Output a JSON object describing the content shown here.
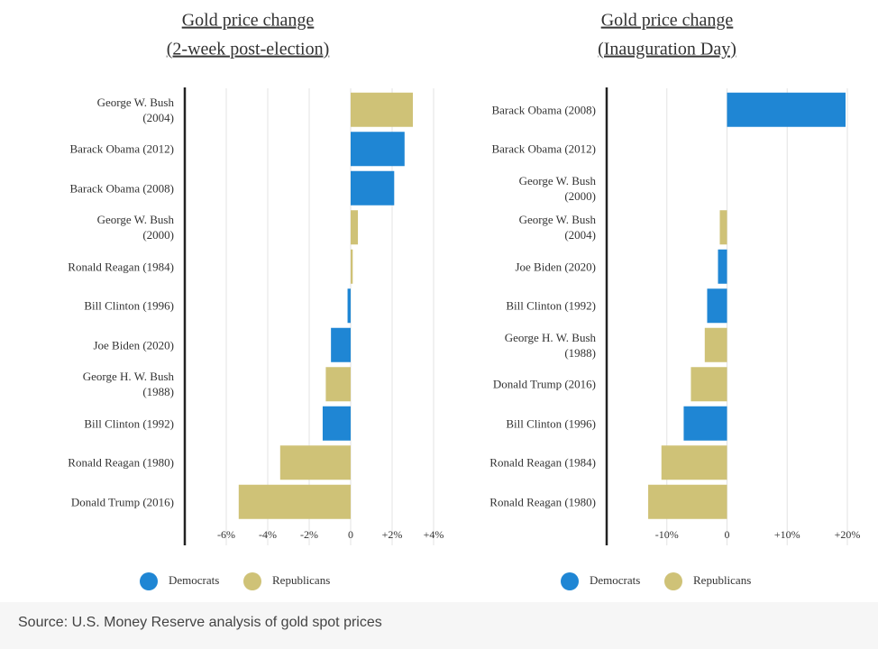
{
  "chart_data": [
    {
      "type": "barh",
      "title": "Gold price change",
      "subtitle": "(2-week post-election)",
      "categories": [
        "George W. Bush\n(2004)",
        "Barack Obama (2012)",
        "Barack Obama (2008)",
        "George W. Bush\n(2000)",
        "Ronald Reagan (1984)",
        "Bill Clinton (1996)",
        "Joe Biden (2020)",
        "George H. W. Bush\n(1988)",
        "Bill Clinton (1992)",
        "Ronald Reagan (1980)",
        "Donald Trump (2016)"
      ],
      "values": [
        3.0,
        2.6,
        2.1,
        0.35,
        0.1,
        -0.15,
        -0.95,
        -1.2,
        -1.35,
        -3.4,
        -5.4
      ],
      "colors": [
        "#cfc277",
        "#1f86d4",
        "#1f86d4",
        "#cfc277",
        "#cfc277",
        "#1f86d4",
        "#1f86d4",
        "#cfc277",
        "#1f86d4",
        "#cfc277",
        "#cfc277"
      ],
      "legend": [
        {
          "name": "Democrats",
          "color": "#1f86d4"
        },
        {
          "name": "Republicans",
          "color": "#cfc277"
        }
      ],
      "xlim": [
        -8,
        4
      ],
      "xticks": [
        {
          "value": -6,
          "label": "-6%"
        },
        {
          "value": -4,
          "label": "-4%"
        },
        {
          "value": -2,
          "label": "-2%"
        },
        0,
        {
          "value": 2,
          "label": "+2%"
        },
        {
          "value": 4,
          "label": "+4%"
        }
      ],
      "grid": true
    },
    {
      "type": "barh",
      "title": "Gold price change",
      "subtitle": "(Inauguration Day)",
      "categories": [
        "Barack Obama (2008)",
        "Barack Obama (2012)",
        "George W. Bush\n(2000)",
        "George W. Bush\n(2004)",
        "Joe Biden (2020)",
        "Bill Clinton (1992)",
        "George H. W. Bush\n(1988)",
        "Donald Trump (2016)",
        "Bill Clinton (1996)",
        "Ronald Reagan (1984)",
        "Ronald Reagan (1980)"
      ],
      "values": [
        19.7,
        0,
        0,
        -1.2,
        -1.5,
        -3.3,
        -3.7,
        -6.0,
        -7.2,
        -10.9,
        -13.1
      ],
      "colors": [
        "#1f86d4",
        "#1f86d4",
        "#cfc277",
        "#cfc277",
        "#1f86d4",
        "#1f86d4",
        "#cfc277",
        "#cfc277",
        "#1f86d4",
        "#cfc277",
        "#cfc277"
      ],
      "legend": [
        {
          "name": "Democrats",
          "color": "#1f86d4"
        },
        {
          "name": "Republicans",
          "color": "#cfc277"
        }
      ],
      "xlim": [
        -20,
        20
      ],
      "xticks": [
        {
          "value": -10,
          "label": "-10%"
        },
        0,
        {
          "value": 10,
          "label": "+10%"
        },
        {
          "value": 20,
          "label": "+20%"
        }
      ],
      "grid": true
    }
  ],
  "source": "Source: U.S. Money Reserve analysis of gold spot prices"
}
